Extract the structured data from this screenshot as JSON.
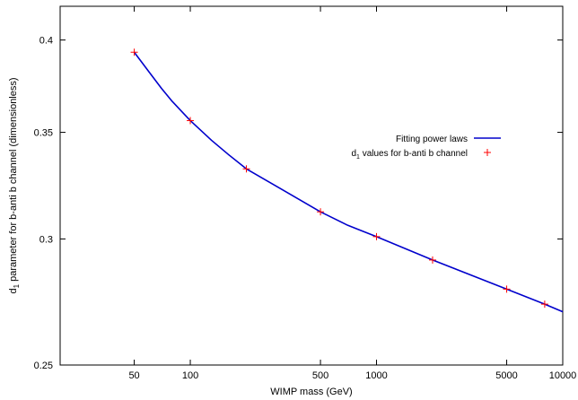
{
  "chart_data": {
    "type": "line",
    "title": "",
    "xlabel": "WIMP mass (GeV)",
    "ylabel_prefix": "d",
    "ylabel_subscript": "1",
    "ylabel_suffix": " parameter for b-anti b channel (dimensionless)",
    "x_scale": "log",
    "y_scale": "log",
    "xlim": [
      20,
      10000
    ],
    "ylim": [
      0.25,
      0.42
    ],
    "x_ticks": [
      50,
      100,
      500,
      1000,
      5000,
      10000
    ],
    "x_tick_labels": [
      "50",
      "100",
      "500",
      "1000",
      "5000",
      "10000"
    ],
    "y_ticks": [
      0.25,
      0.3,
      0.35,
      0.4
    ],
    "y_tick_labels": [
      "0.25",
      "0.3",
      "0.35",
      "0.4"
    ],
    "grid": false,
    "legend_position": "right",
    "series": [
      {
        "name": "Fitting power laws",
        "kind": "line",
        "color": "#0000cc",
        "x": [
          50,
          60,
          70,
          80,
          100,
          130,
          160,
          200,
          300,
          500,
          700,
          1000,
          2000,
          5000,
          8000,
          10000
        ],
        "y": [
          0.393,
          0.382,
          0.373,
          0.366,
          0.356,
          0.346,
          0.339,
          0.332,
          0.323,
          0.312,
          0.306,
          0.301,
          0.291,
          0.279,
          0.273,
          0.27
        ]
      },
      {
        "name_prefix": "d",
        "name_subscript": "1",
        "name_suffix": " values for b-anti b channel",
        "kind": "points",
        "marker": "plus",
        "color": "#ff0000",
        "x": [
          50,
          100,
          200,
          500,
          1000,
          2000,
          5000,
          8000
        ],
        "y": [
          0.393,
          0.356,
          0.332,
          0.312,
          0.301,
          0.291,
          0.279,
          0.273
        ]
      }
    ]
  }
}
